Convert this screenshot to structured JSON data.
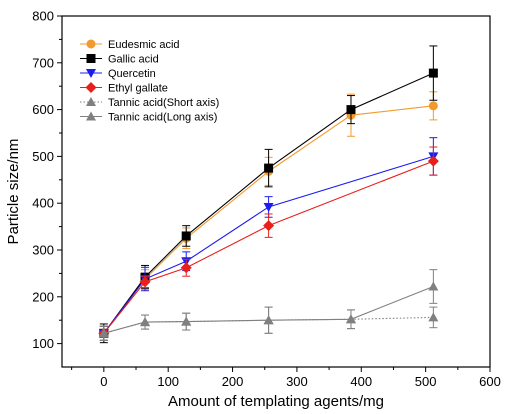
{
  "chart_data": {
    "type": "line",
    "xlabel": "Amount of templating agents/mg",
    "ylabel": "Particle size/nm",
    "xlim": [
      -65,
      600
    ],
    "ylim": [
      50,
      800
    ],
    "x_ticks": [
      0,
      100,
      200,
      300,
      400,
      500,
      600
    ],
    "y_ticks": [
      100,
      200,
      300,
      400,
      500,
      600,
      700,
      800
    ],
    "x_tick_labels": [
      "0",
      "100",
      "200",
      "300",
      "400",
      "500",
      "600"
    ],
    "y_tick_labels": [
      "100",
      "200",
      "300",
      "400",
      "500",
      "600",
      "700",
      "800"
    ],
    "legend_position": "top-left",
    "grid": false,
    "series": [
      {
        "name": "Eudesmic acid",
        "color": "#f39a2e",
        "marker": "circle",
        "line_style": "solid",
        "x": [
          0,
          64,
          128,
          256,
          384,
          512
        ],
        "y": [
          122,
          238,
          325,
          468,
          588,
          608
        ],
        "err": [
          15,
          20,
          22,
          30,
          45,
          30
        ]
      },
      {
        "name": "Gallic acid",
        "color": "#000000",
        "marker": "square",
        "line_style": "solid",
        "x": [
          0,
          64,
          128,
          256,
          384,
          512
        ],
        "y": [
          122,
          242,
          330,
          475,
          600,
          678
        ],
        "err": [
          20,
          25,
          22,
          40,
          30,
          58
        ]
      },
      {
        "name": "Quercetin",
        "color": "#1c1cf0",
        "marker": "triangle-down",
        "line_style": "solid",
        "x": [
          0,
          64,
          128,
          256,
          512
        ],
        "y": [
          122,
          238,
          276,
          392,
          500
        ],
        "err": [
          15,
          25,
          20,
          22,
          40
        ]
      },
      {
        "name": "Ethyl gallate",
        "color": "#e8201c",
        "marker": "diamond",
        "line_style": "solid",
        "x": [
          0,
          64,
          128,
          256,
          512
        ],
        "y": [
          122,
          232,
          262,
          352,
          490
        ],
        "err": [
          15,
          12,
          18,
          25,
          30
        ]
      },
      {
        "name": "Tannic acid(Short axis)",
        "color": "#808080",
        "marker": "triangle-up",
        "line_style": "dotted",
        "x": [
          0,
          64,
          128,
          256,
          384,
          512
        ],
        "y": [
          122,
          146,
          147,
          150,
          152,
          156
        ],
        "err": [
          15,
          15,
          18,
          28,
          20,
          22
        ]
      },
      {
        "name": "Tannic acid(Long axis)",
        "color": "#808080",
        "marker": "triangle-up",
        "line_style": "solid",
        "x": [
          0,
          64,
          128,
          256,
          384,
          512
        ],
        "y": [
          122,
          146,
          147,
          150,
          152,
          222
        ],
        "err": [
          15,
          15,
          18,
          28,
          20,
          36
        ]
      }
    ]
  }
}
